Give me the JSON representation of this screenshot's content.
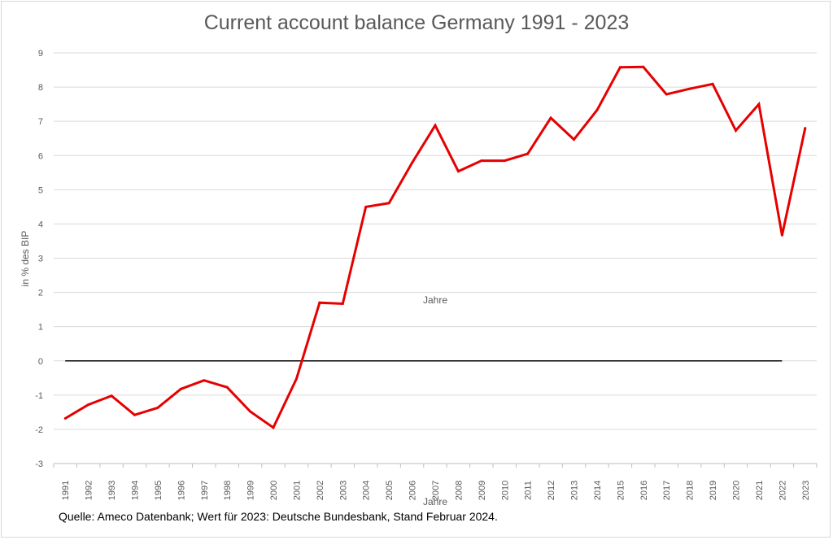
{
  "chart_data": {
    "type": "line",
    "title": "Current account balance Germany 1991 - 2023",
    "ylabel": "in % des BIP",
    "xlabel": "Jahre",
    "ylim": [
      -3,
      9
    ],
    "yticks": [
      "-3",
      "-2",
      "-1",
      "0",
      "1",
      "2",
      "3",
      "4",
      "5",
      "6",
      "7",
      "8",
      "9"
    ],
    "grid": true,
    "x": [
      "1991",
      "1992",
      "1993",
      "1994",
      "1995",
      "1996",
      "1997",
      "1998",
      "1999",
      "2000",
      "2001",
      "2002",
      "2003",
      "2004",
      "2005",
      "2006",
      "2007",
      "2008",
      "2009",
      "2010",
      "2011",
      "2012",
      "2013",
      "2014",
      "2015",
      "2016",
      "2017",
      "2018",
      "2019",
      "2020",
      "2021",
      "2022",
      "2023"
    ],
    "series": [
      {
        "color": "#e60000",
        "values": [
          -1.68,
          -1.28,
          -1.02,
          -1.58,
          -1.37,
          -0.82,
          -0.57,
          -0.77,
          -1.48,
          -1.95,
          -0.52,
          1.7,
          1.67,
          4.5,
          4.61,
          5.79,
          6.88,
          5.54,
          5.85,
          5.85,
          6.05,
          7.1,
          6.47,
          7.33,
          8.58,
          8.59,
          7.79,
          7.95,
          8.09,
          6.73,
          7.5,
          3.67,
          6.8
        ]
      }
    ],
    "reference_line": {
      "y": 0,
      "from": "1991",
      "to": "2022",
      "color": "#000000"
    }
  },
  "source_text": "Quelle: Ameco Datenbank; Wert für 2023: Deutsche Bundesbank, Stand Februar 2024."
}
